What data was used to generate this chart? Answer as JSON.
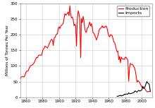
{
  "title": "",
  "ylabel": "Millions of Tonnes Per Year",
  "xlabel": "",
  "production_data": [
    [
      1853,
      57
    ],
    [
      1854,
      64
    ],
    [
      1855,
      65
    ],
    [
      1856,
      66
    ],
    [
      1857,
      65
    ],
    [
      1858,
      65
    ],
    [
      1859,
      72
    ],
    [
      1860,
      80
    ],
    [
      1861,
      83
    ],
    [
      1862,
      83
    ],
    [
      1863,
      86
    ],
    [
      1864,
      93
    ],
    [
      1865,
      98
    ],
    [
      1866,
      101
    ],
    [
      1867,
      103
    ],
    [
      1868,
      103
    ],
    [
      1869,
      107
    ],
    [
      1870,
      110
    ],
    [
      1871,
      117
    ],
    [
      1872,
      123
    ],
    [
      1873,
      127
    ],
    [
      1874,
      126
    ],
    [
      1875,
      133
    ],
    [
      1876,
      134
    ],
    [
      1877,
      135
    ],
    [
      1878,
      134
    ],
    [
      1879,
      134
    ],
    [
      1880,
      147
    ],
    [
      1881,
      154
    ],
    [
      1882,
      156
    ],
    [
      1883,
      163
    ],
    [
      1884,
      161
    ],
    [
      1885,
      159
    ],
    [
      1886,
      157
    ],
    [
      1887,
      163
    ],
    [
      1888,
      170
    ],
    [
      1889,
      176
    ],
    [
      1890,
      182
    ],
    [
      1891,
      185
    ],
    [
      1892,
      181
    ],
    [
      1893,
      165
    ],
    [
      1894,
      189
    ],
    [
      1895,
      190
    ],
    [
      1896,
      197
    ],
    [
      1897,
      202
    ],
    [
      1898,
      202
    ],
    [
      1899,
      220
    ],
    [
      1900,
      225
    ],
    [
      1901,
      219
    ],
    [
      1902,
      227
    ],
    [
      1903,
      230
    ],
    [
      1904,
      232
    ],
    [
      1905,
      236
    ],
    [
      1906,
      251
    ],
    [
      1907,
      267
    ],
    [
      1908,
      262
    ],
    [
      1909,
      264
    ],
    [
      1910,
      268
    ],
    [
      1911,
      272
    ],
    [
      1912,
      260
    ],
    [
      1913,
      292
    ],
    [
      1914,
      265
    ],
    [
      1915,
      253
    ],
    [
      1916,
      256
    ],
    [
      1917,
      248
    ],
    [
      1918,
      228
    ],
    [
      1919,
      233
    ],
    [
      1920,
      229
    ],
    [
      1921,
      163
    ],
    [
      1922,
      250
    ],
    [
      1923,
      276
    ],
    [
      1924,
      267
    ],
    [
      1925,
      247
    ],
    [
      1926,
      126
    ],
    [
      1927,
      251
    ],
    [
      1928,
      238
    ],
    [
      1929,
      258
    ],
    [
      1930,
      243
    ],
    [
      1931,
      219
    ],
    [
      1932,
      209
    ],
    [
      1933,
      207
    ],
    [
      1934,
      221
    ],
    [
      1935,
      222
    ],
    [
      1936,
      232
    ],
    [
      1937,
      240
    ],
    [
      1938,
      227
    ],
    [
      1939,
      235
    ],
    [
      1940,
      224
    ],
    [
      1941,
      206
    ],
    [
      1942,
      204
    ],
    [
      1943,
      198
    ],
    [
      1944,
      192
    ],
    [
      1945,
      183
    ],
    [
      1946,
      190
    ],
    [
      1947,
      197
    ],
    [
      1948,
      212
    ],
    [
      1949,
      218
    ],
    [
      1950,
      220
    ],
    [
      1951,
      223
    ],
    [
      1952,
      228
    ],
    [
      1953,
      222
    ],
    [
      1954,
      225
    ],
    [
      1955,
      222
    ],
    [
      1956,
      226
    ],
    [
      1957,
      227
    ],
    [
      1958,
      219
    ],
    [
      1959,
      206
    ],
    [
      1960,
      196
    ],
    [
      1961,
      193
    ],
    [
      1962,
      200
    ],
    [
      1963,
      197
    ],
    [
      1964,
      197
    ],
    [
      1965,
      187
    ],
    [
      1966,
      176
    ],
    [
      1967,
      175
    ],
    [
      1968,
      165
    ],
    [
      1969,
      153
    ],
    [
      1970,
      145
    ],
    [
      1971,
      147
    ],
    [
      1972,
      120
    ],
    [
      1973,
      130
    ],
    [
      1974,
      110
    ],
    [
      1975,
      128
    ],
    [
      1976,
      123
    ],
    [
      1977,
      121
    ],
    [
      1978,
      122
    ],
    [
      1979,
      121
    ],
    [
      1980,
      128
    ],
    [
      1981,
      127
    ],
    [
      1982,
      122
    ],
    [
      1983,
      119
    ],
    [
      1984,
      51
    ],
    [
      1985,
      94
    ],
    [
      1986,
      108
    ],
    [
      1987,
      105
    ],
    [
      1988,
      105
    ],
    [
      1989,
      103
    ],
    [
      1990,
      98
    ],
    [
      1991,
      94
    ],
    [
      1992,
      84
    ],
    [
      1993,
      68
    ],
    [
      1994,
      48
    ],
    [
      1995,
      53
    ],
    [
      1996,
      50
    ],
    [
      1997,
      48
    ],
    [
      1998,
      42
    ],
    [
      1999,
      37
    ],
    [
      2000,
      31
    ],
    [
      2001,
      32
    ],
    [
      2002,
      30
    ],
    [
      2003,
      28
    ],
    [
      2004,
      25
    ],
    [
      2005,
      20
    ],
    [
      2006,
      18
    ],
    [
      2007,
      17
    ],
    [
      2008,
      18
    ],
    [
      2009,
      18
    ],
    [
      2010,
      18
    ]
  ],
  "imports_data": [
    [
      1970,
      3
    ],
    [
      1971,
      3
    ],
    [
      1972,
      4
    ],
    [
      1973,
      5
    ],
    [
      1974,
      6
    ],
    [
      1975,
      4
    ],
    [
      1976,
      5
    ],
    [
      1977,
      6
    ],
    [
      1978,
      7
    ],
    [
      1979,
      10
    ],
    [
      1980,
      9
    ],
    [
      1981,
      10
    ],
    [
      1982,
      10
    ],
    [
      1983,
      10
    ],
    [
      1984,
      14
    ],
    [
      1985,
      12
    ],
    [
      1986,
      11
    ],
    [
      1987,
      12
    ],
    [
      1988,
      13
    ],
    [
      1989,
      14
    ],
    [
      1990,
      14
    ],
    [
      1991,
      18
    ],
    [
      1992,
      20
    ],
    [
      1993,
      18
    ],
    [
      1994,
      16
    ],
    [
      1995,
      19
    ],
    [
      1996,
      22
    ],
    [
      1997,
      20
    ],
    [
      1998,
      20
    ],
    [
      1999,
      22
    ],
    [
      2000,
      24
    ],
    [
      2001,
      35
    ],
    [
      2002,
      28
    ],
    [
      2003,
      30
    ],
    [
      2004,
      36
    ],
    [
      2005,
      44
    ],
    [
      2006,
      50
    ],
    [
      2007,
      45
    ],
    [
      2008,
      44
    ],
    [
      2009,
      39
    ],
    [
      2010,
      19
    ]
  ],
  "production_color": "#ff0000",
  "imports_color": "#000000",
  "ylim": [
    0,
    300
  ],
  "xlim": [
    1853,
    2012
  ],
  "yticks": [
    0,
    50,
    100,
    150,
    200,
    250,
    300
  ],
  "xticks": [
    1860,
    1880,
    1900,
    1920,
    1940,
    1960,
    1980,
    2000
  ],
  "grid_color": "#cccccc",
  "bg_color": "#ffffff",
  "ylabel_fontsize": 4,
  "tick_fontsize": 4,
  "legend_fontsize": 4.5,
  "linewidth_production": 0.8,
  "linewidth_imports": 0.8
}
